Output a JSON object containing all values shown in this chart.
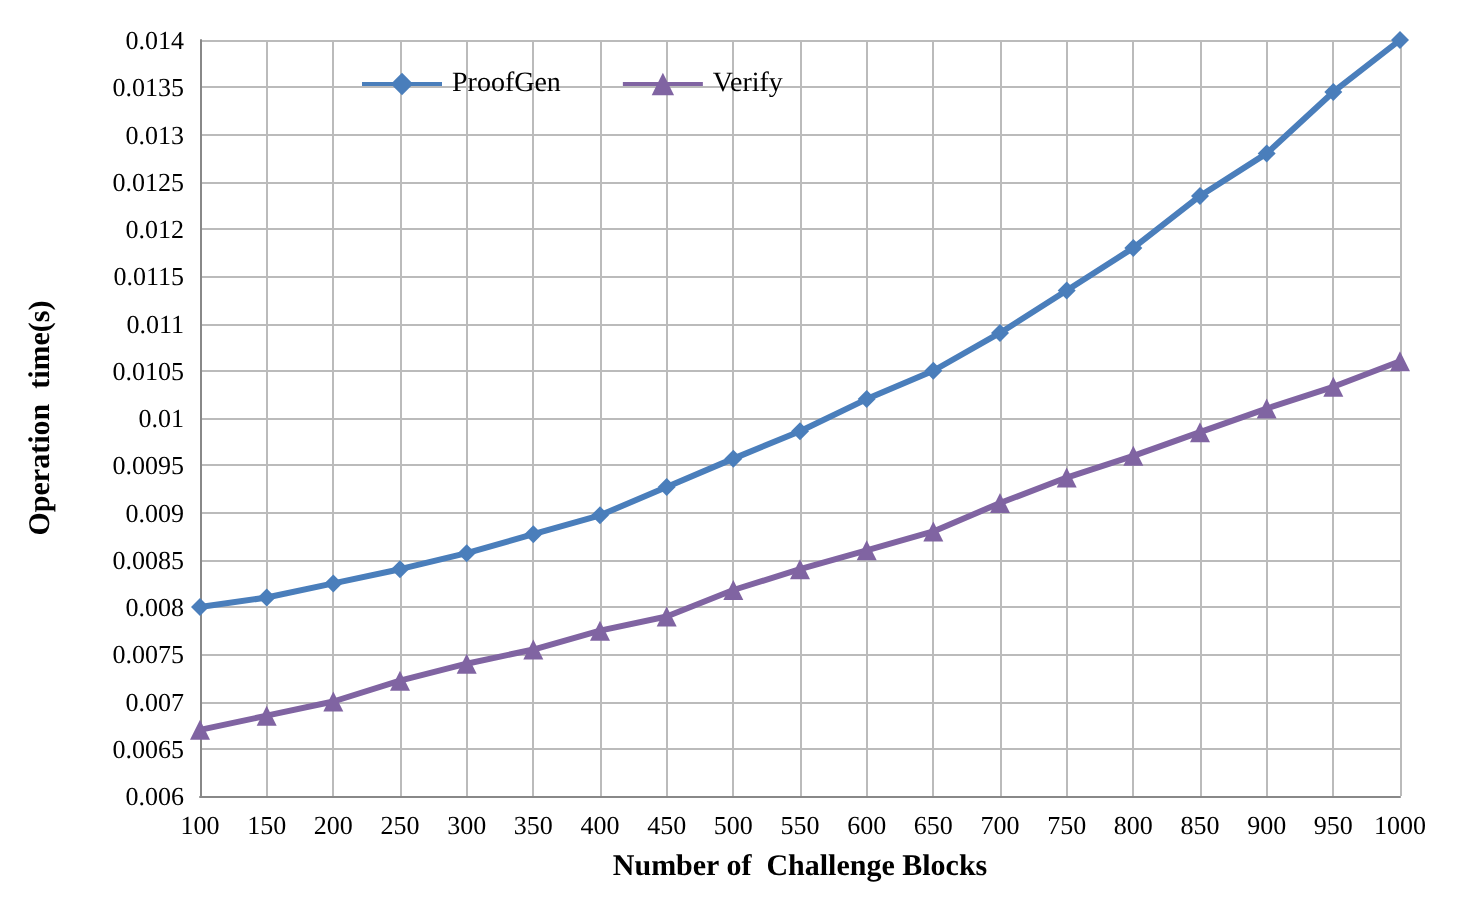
{
  "chart_data": {
    "type": "line",
    "xlabel": "Number of  Challenge Blocks",
    "ylabel": "Operation  time(s)",
    "categories": [
      "100",
      "150",
      "200",
      "250",
      "300",
      "350",
      "400",
      "450",
      "500",
      "550",
      "600",
      "650",
      "700",
      "750",
      "800",
      "850",
      "900",
      "950",
      "1000"
    ],
    "series": [
      {
        "name": "ProofGen",
        "color": "#4a7ebb",
        "marker": "diamond",
        "values": [
          0.008,
          0.0081,
          0.00825,
          0.0084,
          0.00857,
          0.00877,
          0.00897,
          0.00927,
          0.00957,
          0.00986,
          0.0102,
          0.0105,
          0.0109,
          0.01135,
          0.0118,
          0.01235,
          0.0128,
          0.01345,
          0.014
        ]
      },
      {
        "name": "Verify",
        "color": "#8064a2",
        "marker": "triangle",
        "values": [
          0.0067,
          0.00685,
          0.007,
          0.00722,
          0.0074,
          0.00755,
          0.00775,
          0.0079,
          0.00818,
          0.0084,
          0.0086,
          0.0088,
          0.0091,
          0.00937,
          0.0096,
          0.00985,
          0.0101,
          0.01033,
          0.0106
        ]
      }
    ],
    "ylim": [
      0.006,
      0.014
    ],
    "yticks": [
      0.006,
      0.0065,
      0.007,
      0.0075,
      0.008,
      0.0085,
      0.009,
      0.0095,
      0.01,
      0.0105,
      0.011,
      0.0115,
      0.012,
      0.0125,
      0.013,
      0.0135,
      0.014
    ],
    "grid": true,
    "legend": "top left"
  }
}
